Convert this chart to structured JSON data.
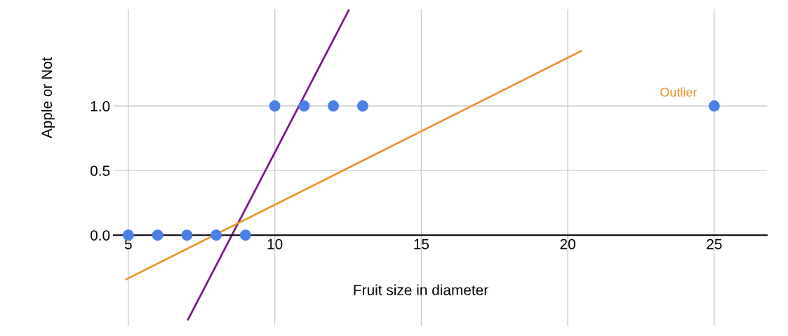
{
  "chart_data": {
    "type": "scatter",
    "xlabel": "Fruit size in diameter",
    "ylabel": "Apple or Not",
    "x": [
      5,
      6,
      7,
      8,
      9,
      10,
      11,
      12,
      13,
      25
    ],
    "series": [
      {
        "color": "#4a80e6",
        "marker": "circle",
        "values": [
          0,
          0,
          0,
          0,
          0,
          1,
          1,
          1,
          1,
          1
        ]
      },
      {
        "type": "line",
        "color": "#7b1a8a",
        "x": [
          7.04,
          12.52
        ],
        "values": [
          -0.652,
          1.739
        ]
      },
      {
        "type": "line",
        "color": "#e8962e",
        "x": [
          4.93,
          20.45
        ],
        "values": [
          -0.342,
          1.424
        ]
      }
    ],
    "annotations": [
      "Outlier"
    ],
    "xlim": [
      4.5,
      26.8
    ],
    "ylim": [
      -0.7,
      1.75
    ],
    "xticks": [
      5,
      10,
      15,
      20,
      25
    ],
    "yticks": [
      {
        "value": 0,
        "label": "0.0"
      },
      {
        "value": 0.5,
        "label": "0.5"
      },
      {
        "value": 1,
        "label": "1.0"
      }
    ],
    "grid": true,
    "legend": false
  }
}
